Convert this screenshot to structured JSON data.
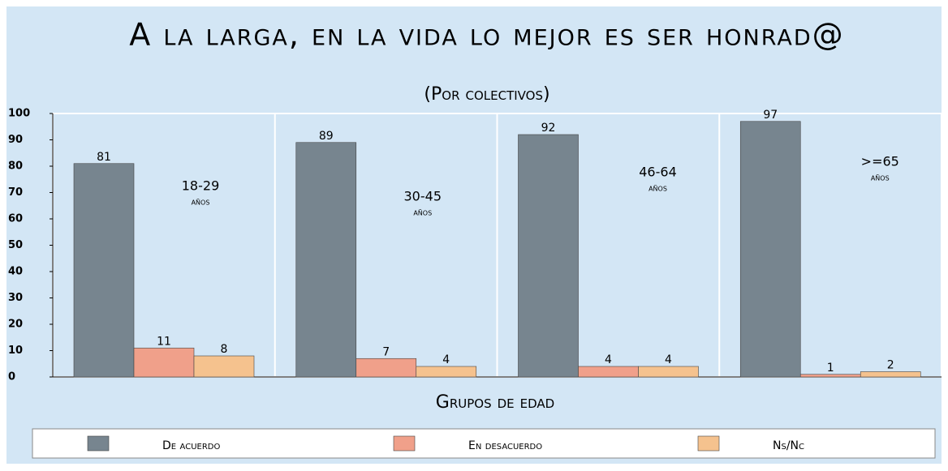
{
  "chart_data": {
    "type": "bar",
    "title": "A la larga, en la vida lo mejor es ser honrad@",
    "subtitle": "(Por colectivos)",
    "x_label": "Grupos de edad",
    "categories": [
      "18-29",
      "30-45",
      "46-64",
      ">=65"
    ],
    "category_unit": "años",
    "series": [
      {
        "name": "De acuerdo",
        "color": "#77858f",
        "values": [
          81,
          89,
          92,
          97
        ]
      },
      {
        "name": "En desacuerdo",
        "color": "#f0a08a",
        "values": [
          11,
          7,
          4,
          1
        ]
      },
      {
        "name": "Ns/Nc",
        "color": "#f5c28e",
        "values": [
          8,
          4,
          4,
          2
        ]
      }
    ],
    "ylim": [
      0,
      100
    ],
    "yticks": [
      0,
      10,
      20,
      30,
      40,
      50,
      60,
      70,
      80,
      90,
      100
    ],
    "legend": "bottom"
  }
}
